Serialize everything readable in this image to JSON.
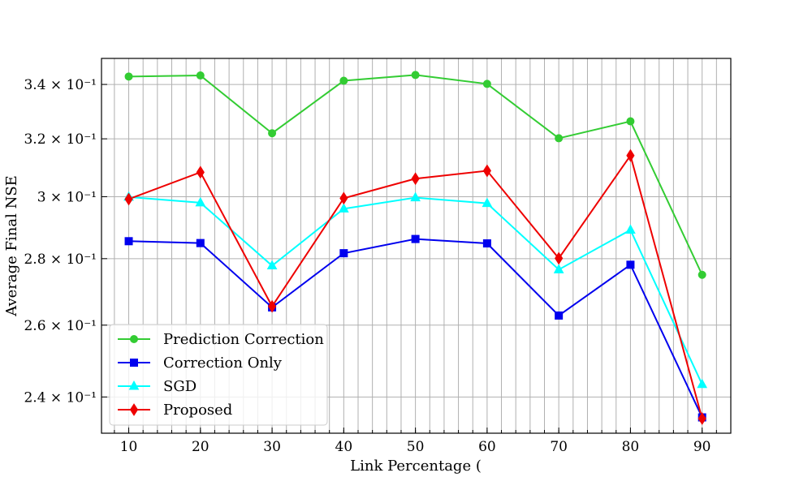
{
  "chart_data": {
    "type": "line",
    "title": "",
    "xlabel": "Link Percentage (",
    "ylabel": "Average Final NSE",
    "x": [
      10,
      20,
      30,
      40,
      50,
      60,
      70,
      80,
      90
    ],
    "xlim": [
      6.2,
      94.0
    ],
    "ylim": [
      0.2305,
      0.35
    ],
    "y_scale": "log",
    "x_ticks": [
      10,
      20,
      30,
      40,
      50,
      60,
      70,
      80,
      90
    ],
    "y_ticks": [
      {
        "value": 0.24,
        "label": "2.4 × 10⁻¹"
      },
      {
        "value": 0.26,
        "label": "2.6 × 10⁻¹"
      },
      {
        "value": 0.28,
        "label": "2.8 × 10⁻¹"
      },
      {
        "value": 0.3,
        "label": "3 × 10⁻¹"
      },
      {
        "value": 0.32,
        "label": "3.2 × 10⁻¹"
      },
      {
        "value": 0.34,
        "label": "3.4 × 10⁻¹"
      }
    ],
    "grid": true,
    "legend_position": "lower-left",
    "series": [
      {
        "name": "Prediction Correction",
        "color": "#33cc33",
        "marker": "circle",
        "values": [
          0.343,
          0.3434,
          0.322,
          0.3414,
          0.3436,
          0.3402,
          0.3202,
          0.3263,
          0.275
        ]
      },
      {
        "name": "Correction Only",
        "color": "#0000ee",
        "marker": "square",
        "values": [
          0.2855,
          0.2849,
          0.2652,
          0.2817,
          0.2862,
          0.2848,
          0.2628,
          0.2781,
          0.2346
        ]
      },
      {
        "name": "SGD",
        "color": "#00ffff",
        "marker": "triangle",
        "values": [
          0.2999,
          0.298,
          0.2778,
          0.296,
          0.2997,
          0.2978,
          0.2766,
          0.2891,
          0.2434
        ]
      },
      {
        "name": "Proposed",
        "color": "#ee0000",
        "marker": "diamond",
        "values": [
          0.2992,
          0.3083,
          0.2655,
          0.2995,
          0.3061,
          0.3088,
          0.2801,
          0.3141,
          0.2343
        ]
      }
    ]
  }
}
